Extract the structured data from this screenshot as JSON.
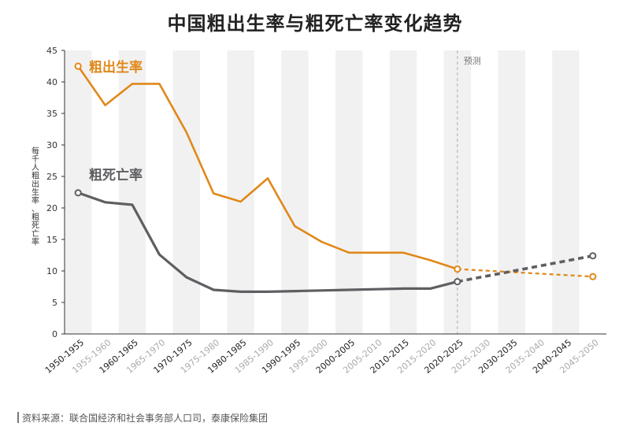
{
  "chart_data": {
    "type": "line",
    "title": "中国粗出生率与粗死亡率变化趋势",
    "ylabel": "每千人粗出生率、粗死亡率",
    "ylim": [
      0,
      45
    ],
    "yticks": [
      0,
      5,
      10,
      15,
      20,
      25,
      30,
      35,
      40,
      45
    ],
    "categories": [
      "1950-1955",
      "1955-1960",
      "1960-1965",
      "1965-1970",
      "1970-1975",
      "1975-1980",
      "1980-1985",
      "1985-1990",
      "1990-1995",
      "1995-2000",
      "2000-2005",
      "2005-2010",
      "2010-2015",
      "2015-2020",
      "2020-2025",
      "2025-2030",
      "2030-2035",
      "2035-2040",
      "2040-2045",
      "2045-2050"
    ],
    "emphasized_tick_labels": [
      "1950-1955",
      "1960-1965",
      "1970-1975",
      "1980-1985",
      "1990-1995",
      "2000-2005",
      "2010-2015",
      "2020-2025",
      "2030-2035",
      "2040-2045"
    ],
    "forecast_label": "预测",
    "forecast_start": "2020-2025",
    "grid": "alternating vertical bands",
    "series": [
      {
        "name": "粗出生率",
        "color": "#e0881a",
        "points": [
          {
            "x": "1950-1955",
            "y": 42.5
          },
          {
            "x": "1955-1960",
            "y": 36.3
          },
          {
            "x": "1960-1965",
            "y": 39.7
          },
          {
            "x": "1965-1970",
            "y": 39.7
          },
          {
            "x": "1970-1975",
            "y": 32.0
          },
          {
            "x": "1975-1980",
            "y": 22.3
          },
          {
            "x": "1980-1985",
            "y": 21.0
          },
          {
            "x": "1985-1990",
            "y": 24.7
          },
          {
            "x": "1990-1995",
            "y": 17.1
          },
          {
            "x": "1995-2000",
            "y": 14.6
          },
          {
            "x": "2000-2005",
            "y": 12.9
          },
          {
            "x": "2005-2010",
            "y": 12.9
          },
          {
            "x": "2010-2015",
            "y": 12.9
          },
          {
            "x": "2015-2020",
            "y": 11.7
          },
          {
            "x": "2020-2025",
            "y": 10.3
          }
        ],
        "forecast": [
          {
            "x": "2020-2025",
            "y": 10.3
          },
          {
            "x": "2045-2050",
            "y": 9.1
          }
        ]
      },
      {
        "name": "粗死亡率",
        "color": "#5f5f63",
        "points": [
          {
            "x": "1950-1955",
            "y": 22.4
          },
          {
            "x": "1955-1960",
            "y": 20.9
          },
          {
            "x": "1960-1965",
            "y": 20.5
          },
          {
            "x": "1965-1970",
            "y": 12.6
          },
          {
            "x": "1970-1975",
            "y": 9.0
          },
          {
            "x": "1975-1980",
            "y": 7.0
          },
          {
            "x": "1980-1985",
            "y": 6.7
          },
          {
            "x": "1985-1990",
            "y": 6.7
          },
          {
            "x": "1990-1995",
            "y": 6.8
          },
          {
            "x": "1995-2000",
            "y": 6.9
          },
          {
            "x": "2000-2005",
            "y": 7.0
          },
          {
            "x": "2005-2010",
            "y": 7.1
          },
          {
            "x": "2010-2015",
            "y": 7.2
          },
          {
            "x": "2015-2020",
            "y": 7.2
          },
          {
            "x": "2020-2025",
            "y": 8.3
          }
        ],
        "forecast": [
          {
            "x": "2020-2025",
            "y": 8.3
          },
          {
            "x": "2045-2050",
            "y": 12.4
          }
        ]
      }
    ]
  },
  "source": "资料来源：联合国经济和社会事务部人口司，泰康保险集团"
}
